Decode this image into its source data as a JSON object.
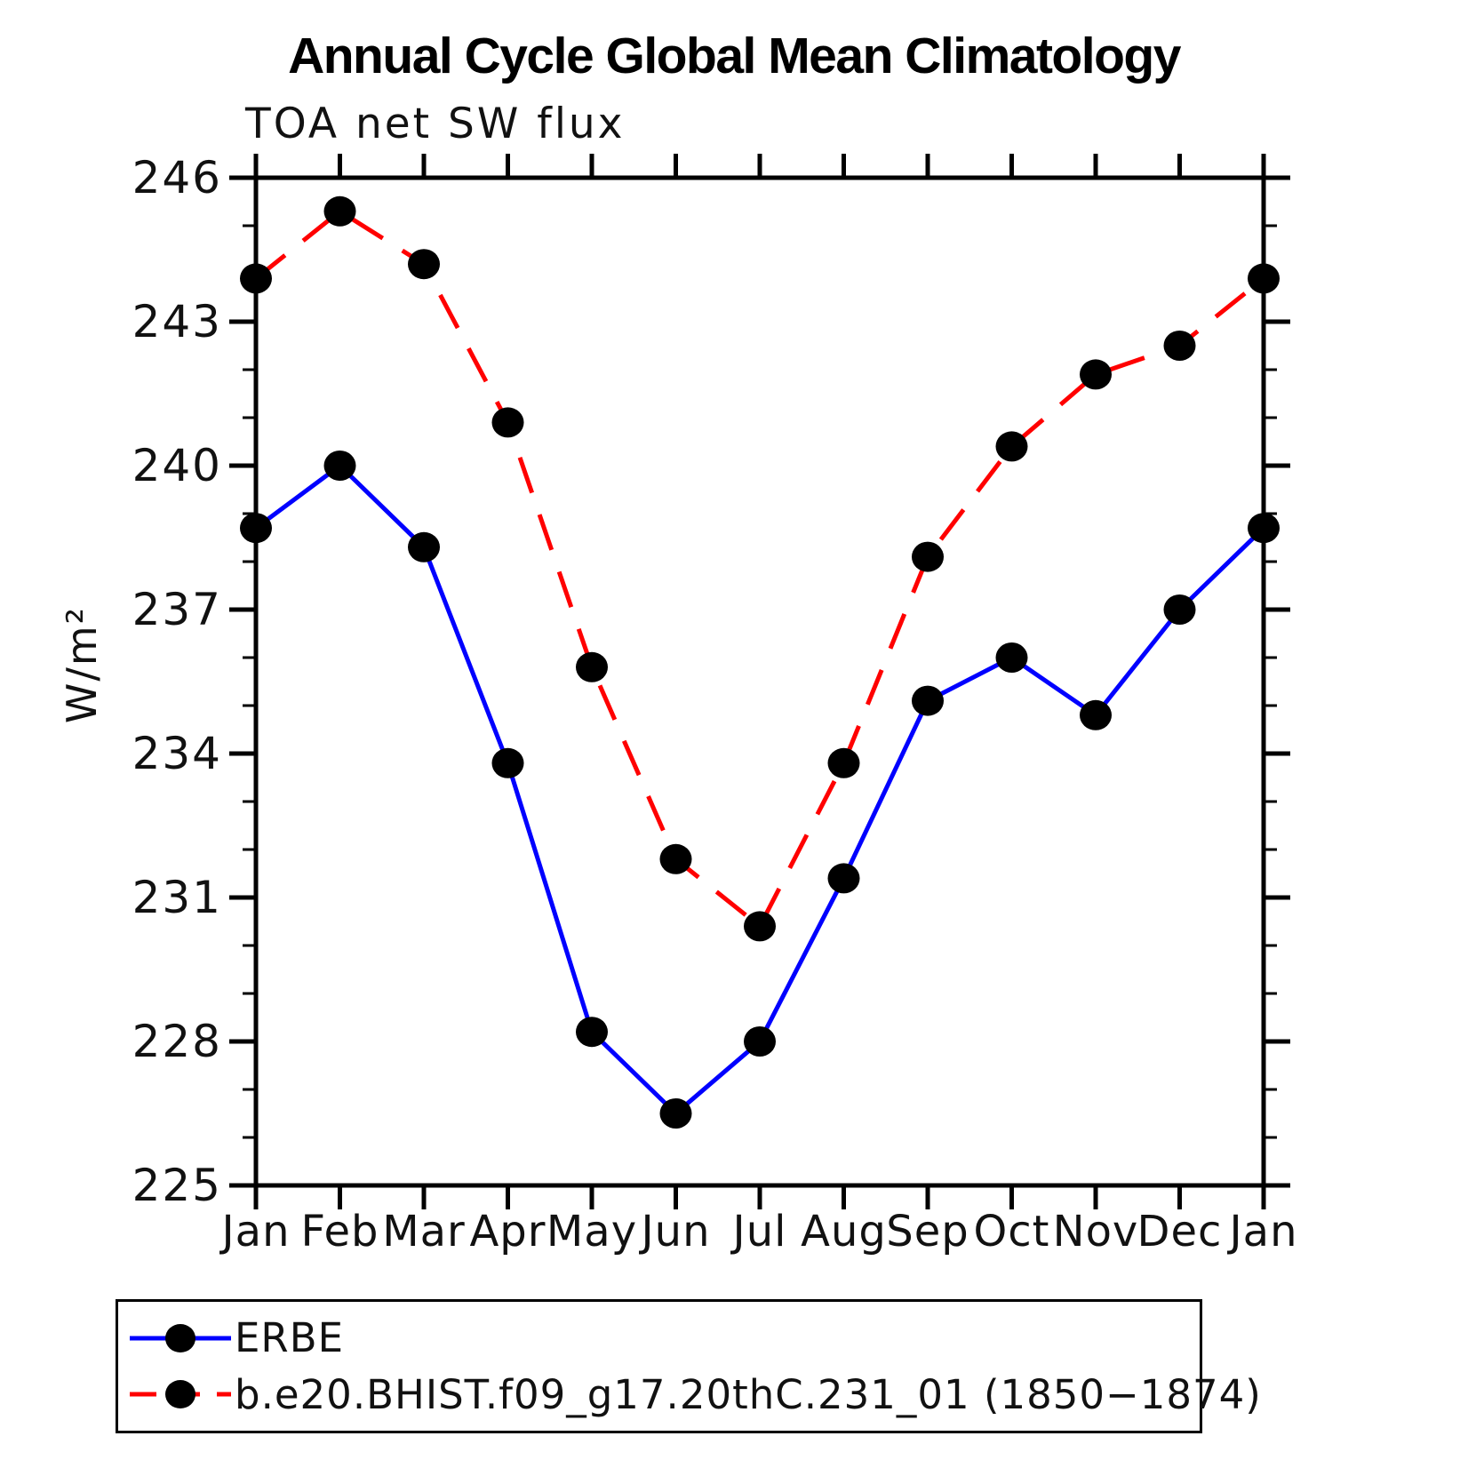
{
  "title": "Annual Cycle Global Mean Climatology",
  "subtitle": "TOA net SW flux",
  "ylabel": "W/m²",
  "chart_data": {
    "type": "line",
    "categories": [
      "Jan",
      "Feb",
      "Mar",
      "Apr",
      "May",
      "Jun",
      "Jul",
      "Aug",
      "Sep",
      "Oct",
      "Nov",
      "Dec",
      "Jan"
    ],
    "series": [
      {
        "name": "ERBE",
        "color": "#0000ff",
        "line_style": "solid",
        "marker": "filled-circle",
        "values": [
          238.7,
          240.0,
          238.3,
          233.8,
          228.2,
          226.5,
          228.0,
          231.4,
          235.1,
          236.0,
          234.8,
          237.0,
          238.7
        ]
      },
      {
        "name": "b.e20.BHIST.f09_g17.20thC.231_01 (1850−1874)",
        "color": "#ff0000",
        "line_style": "dashed",
        "marker": "filled-circle",
        "values": [
          243.9,
          245.3,
          244.2,
          240.9,
          235.8,
          231.8,
          230.4,
          233.8,
          238.1,
          240.4,
          241.9,
          242.5,
          243.9
        ]
      }
    ],
    "ylim": [
      225,
      246
    ],
    "ytick_major_step": 3,
    "ytick_minor_step": 1,
    "yticks_major": [
      225,
      228,
      231,
      234,
      237,
      240,
      243,
      246
    ],
    "grid": "off",
    "legend_position": "bottom-left-box",
    "marker_color": "#000000",
    "axis_color": "#000000"
  }
}
